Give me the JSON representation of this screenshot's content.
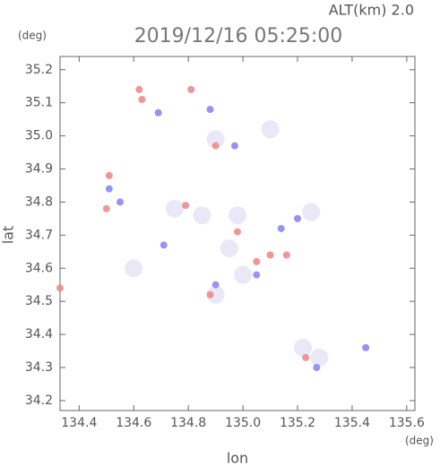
{
  "chart_data": {
    "type": "scatter",
    "title": "2019/12/16 05:25:00",
    "subtitle": "ALT(km) 2.0",
    "y_unit": "(deg)",
    "x_unit": "(deg)",
    "y_label": "lat",
    "x_label": "lon",
    "xlim": [
      134.33,
      135.63
    ],
    "ylim": [
      34.17,
      35.24
    ],
    "xticks": [
      134.4,
      134.6,
      134.8,
      {
        "value": 135.0,
        "label": "135.0"
      },
      135.2,
      135.4,
      135.6
    ],
    "yticks": [
      34.2,
      34.3,
      34.4,
      34.5,
      34.6,
      34.7,
      34.8,
      34.9,
      {
        "value": 35.0,
        "label": "35.0"
      },
      35.1,
      35.2
    ],
    "series": [
      {
        "color": "#e8e6f6",
        "size": 10,
        "x": [
          134.75,
          134.85,
          134.9,
          135.0,
          135.28,
          134.98,
          135.1,
          134.9,
          134.95,
          135.25,
          134.6,
          135.22
        ],
        "y": [
          34.78,
          34.76,
          34.52,
          34.58,
          34.33,
          34.76,
          35.02,
          34.99,
          34.66,
          34.77,
          34.6,
          34.36
        ]
      },
      {
        "color": "#f08a8a",
        "size": 4,
        "x": [
          134.62,
          134.63,
          134.81,
          134.51,
          134.5,
          134.33,
          134.79,
          135.1,
          135.23,
          135.05,
          134.9,
          134.98,
          135.16,
          134.88
        ],
        "y": [
          35.14,
          35.11,
          35.14,
          34.88,
          34.78,
          34.54,
          34.79,
          34.64,
          34.33,
          34.62,
          34.97,
          34.71,
          34.64,
          34.52
        ]
      },
      {
        "color": "#8a8af0",
        "size": 4,
        "x": [
          134.69,
          134.88,
          135.45,
          134.51,
          134.9,
          134.71,
          135.2,
          135.27,
          134.97,
          135.14,
          134.55,
          135.05
        ],
        "y": [
          35.07,
          35.08,
          34.36,
          34.84,
          34.55,
          34.67,
          34.75,
          34.3,
          34.97,
          34.72,
          34.8,
          34.58
        ]
      }
    ]
  }
}
